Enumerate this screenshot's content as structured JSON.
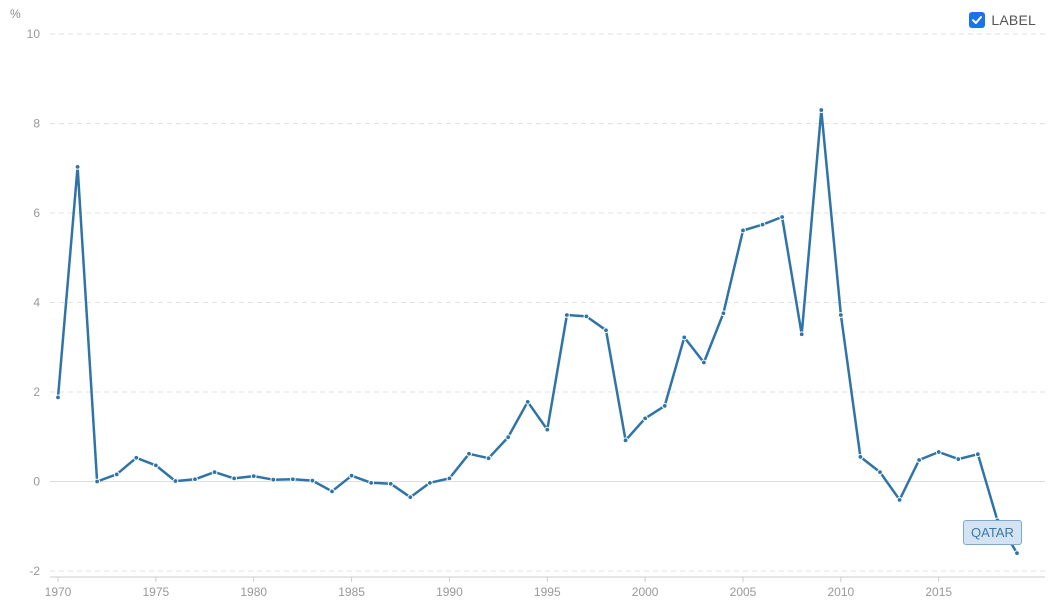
{
  "legend": {
    "label": "LABEL",
    "checked": true,
    "color": "#1a73e8"
  },
  "series_tag": "QATAR",
  "chart_data": {
    "type": "line",
    "ylabel": "%",
    "ylim": [
      -2,
      10
    ],
    "yticks": [
      -2,
      0,
      2,
      4,
      6,
      8,
      10
    ],
    "xlim": [
      1970,
      2019
    ],
    "xticks": [
      1970,
      1975,
      1980,
      1985,
      1990,
      1995,
      2000,
      2005,
      2010,
      2015
    ],
    "grid": true,
    "legend_position": "top-right",
    "series": [
      {
        "name": "QATAR",
        "color": "#2f74a8",
        "x": [
          1970,
          1971,
          1972,
          1973,
          1974,
          1975,
          1976,
          1977,
          1978,
          1979,
          1980,
          1981,
          1982,
          1983,
          1984,
          1985,
          1986,
          1987,
          1988,
          1989,
          1990,
          1991,
          1992,
          1993,
          1994,
          1995,
          1996,
          1997,
          1998,
          1999,
          2000,
          2001,
          2002,
          2003,
          2004,
          2005,
          2006,
          2007,
          2008,
          2009,
          2010,
          2011,
          2012,
          2013,
          2014,
          2015,
          2016,
          2017,
          2018,
          2019
        ],
        "y": [
          1.88,
          7.03,
          0.0,
          0.16,
          0.53,
          0.36,
          0.01,
          0.05,
          0.21,
          0.07,
          0.12,
          0.04,
          0.05,
          0.02,
          -0.22,
          0.13,
          -0.03,
          -0.05,
          -0.35,
          -0.03,
          0.07,
          0.62,
          0.52,
          0.99,
          1.78,
          1.16,
          3.72,
          3.69,
          3.38,
          0.92,
          1.41,
          1.69,
          3.22,
          2.66,
          3.76,
          5.61,
          5.74,
          5.91,
          3.29,
          8.3,
          3.72,
          0.55,
          0.21,
          -0.41,
          0.48,
          0.66,
          0.5,
          0.61,
          -0.87,
          -1.6
        ]
      }
    ]
  }
}
